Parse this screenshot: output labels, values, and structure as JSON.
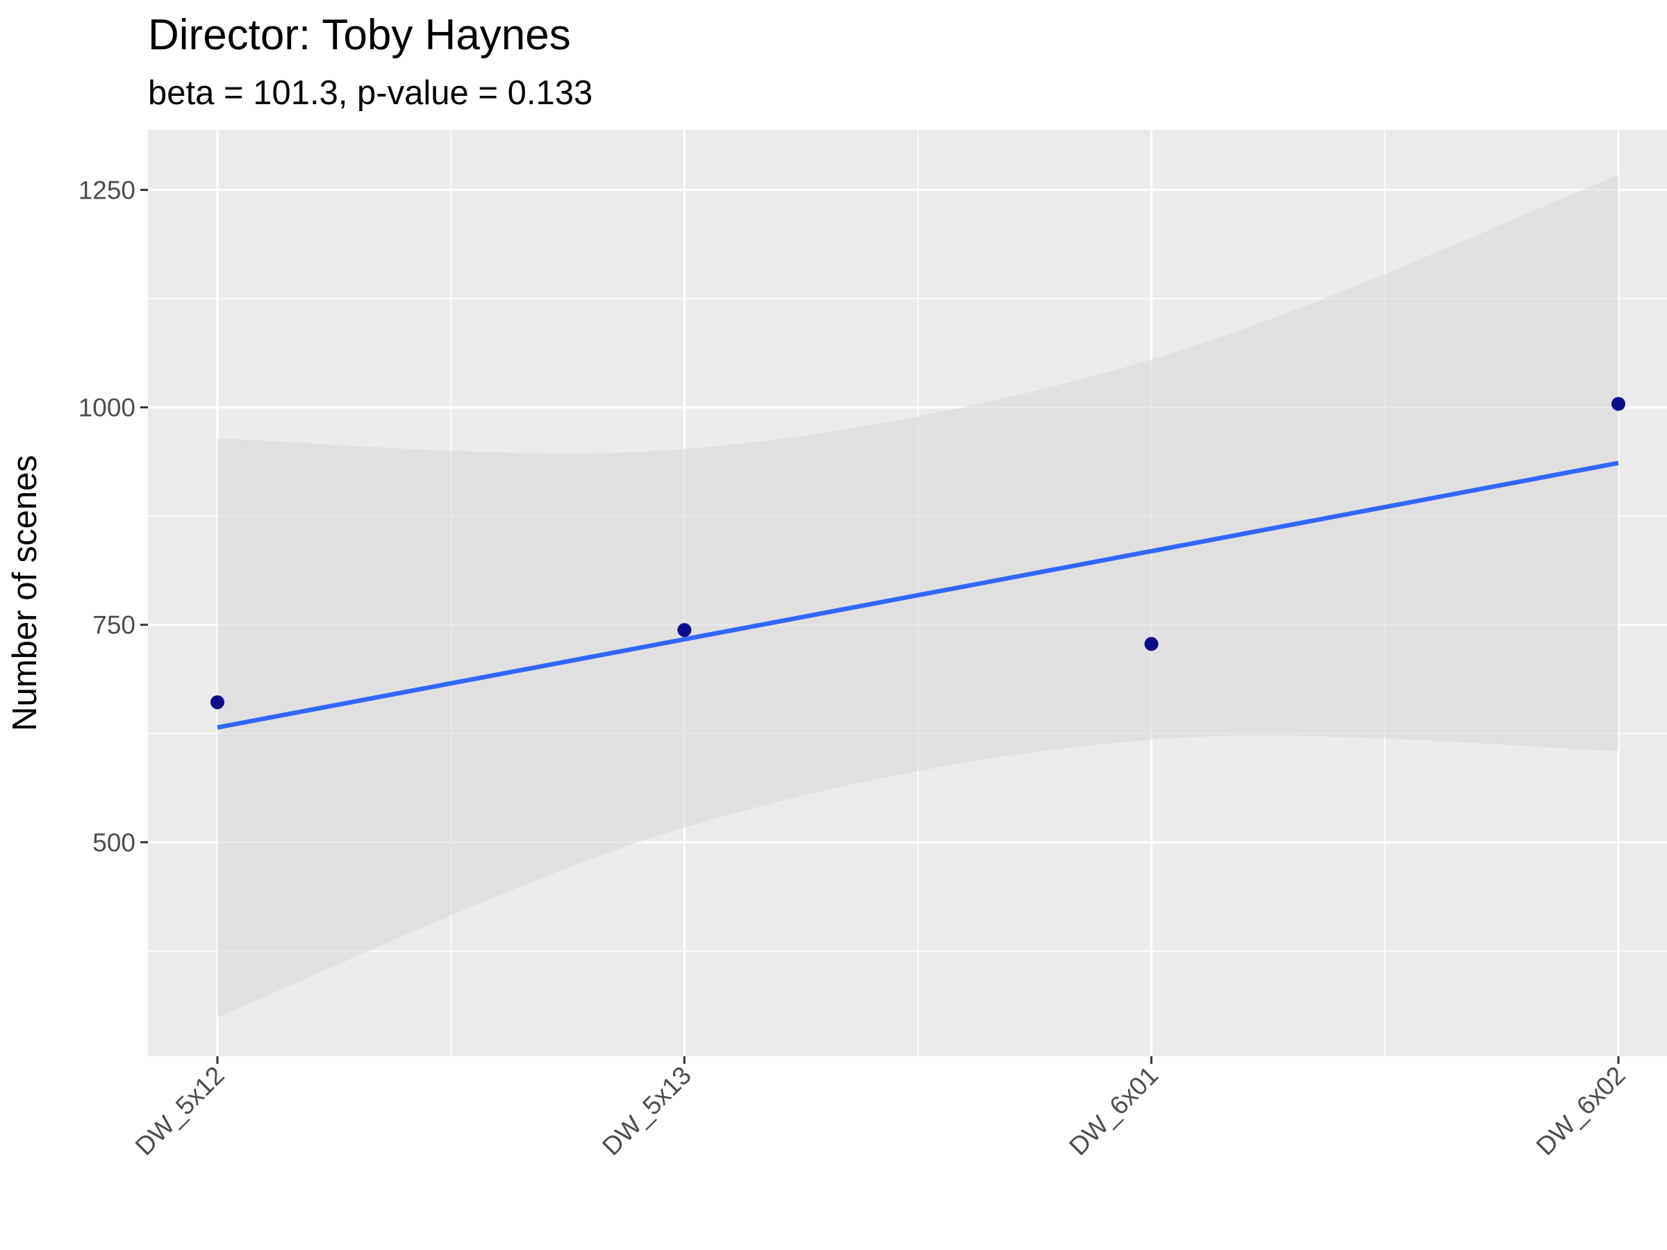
{
  "chart_data": {
    "type": "scatter",
    "title": "Director: Toby Haynes",
    "subtitle": "beta = 101.3, p-value = 0.133",
    "xlabel": "",
    "ylabel": "Number of scenes",
    "categories": [
      "DW_5x12",
      "DW_5x13",
      "DW_6x01",
      "DW_6x02"
    ],
    "points": [
      661,
      744,
      728,
      1004
    ],
    "fit_line": {
      "start": 632,
      "end": 936
    },
    "confidence_band": {
      "upper": [
        964,
        952,
        1055,
        1267
      ],
      "lower": [
        299,
        517,
        618,
        605
      ]
    },
    "y_ticks": [
      500,
      750,
      1000,
      1250
    ],
    "ylim": [
      254,
      1319
    ],
    "grid": true,
    "legend": "none",
    "colors": {
      "panel": "#ebebeb",
      "gridline": "#ffffff",
      "point": "#0d0d8c",
      "fit_line": "#3366ff",
      "band": "#d9d9d9"
    }
  }
}
